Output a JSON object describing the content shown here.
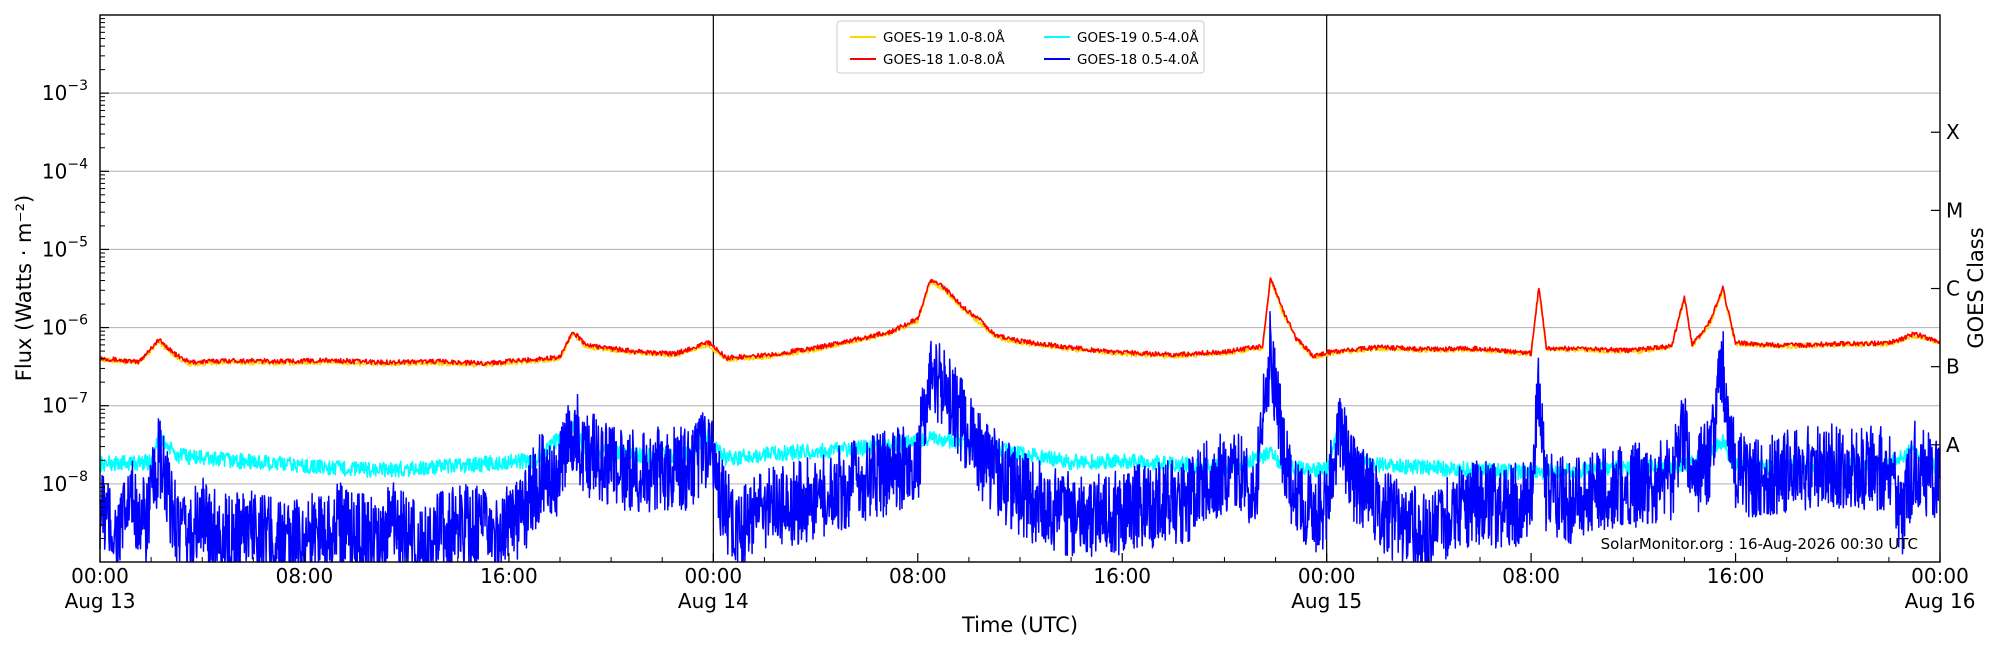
{
  "chart_data": {
    "type": "line",
    "title": "",
    "xlabel": "Time (UTC)",
    "ylabel": "Flux (Watts · m⁻²)",
    "y2label": "GOES Class",
    "yscale": "log",
    "ylim": [
      1e-09,
      0.01
    ],
    "xlim_hours": [
      0,
      72
    ],
    "grid": "horizontal-major",
    "legend_position": "top-center",
    "x_ticks": [
      {
        "hour": 0,
        "time": "00:00",
        "date": "Aug 13"
      },
      {
        "hour": 8,
        "time": "08:00",
        "date": ""
      },
      {
        "hour": 16,
        "time": "16:00",
        "date": ""
      },
      {
        "hour": 24,
        "time": "00:00",
        "date": "Aug 14"
      },
      {
        "hour": 32,
        "time": "08:00",
        "date": ""
      },
      {
        "hour": 40,
        "time": "16:00",
        "date": ""
      },
      {
        "hour": 48,
        "time": "00:00",
        "date": "Aug 15"
      },
      {
        "hour": 56,
        "time": "08:00",
        "date": ""
      },
      {
        "hour": 64,
        "time": "16:00",
        "date": ""
      },
      {
        "hour": 72,
        "time": "00:00",
        "date": "Aug 16"
      }
    ],
    "y_ticks": [
      {
        "value": 1e-08,
        "base": "10",
        "exp": "−8"
      },
      {
        "value": 1e-07,
        "base": "10",
        "exp": "−7"
      },
      {
        "value": 1e-06,
        "base": "10",
        "exp": "−6"
      },
      {
        "value": 1e-05,
        "base": "10",
        "exp": "−5"
      },
      {
        "value": 0.0001,
        "base": "10",
        "exp": "−4"
      },
      {
        "value": 0.001,
        "base": "10",
        "exp": "−3"
      }
    ],
    "goes_classes": [
      {
        "label": "A",
        "value": 3.16e-08
      },
      {
        "label": "B",
        "value": 3.16e-07
      },
      {
        "label": "C",
        "value": 3.16e-06
      },
      {
        "label": "M",
        "value": 3.16e-05
      },
      {
        "label": "X",
        "value": 0.000316
      }
    ],
    "day_boundaries_hours": [
      24,
      48
    ],
    "series": [
      {
        "name": "GOES-19 1.0-8.0Å",
        "color": "#ffd700",
        "points": [
          [
            0,
            3.9e-07
          ],
          [
            1.5,
            3.5e-07
          ],
          [
            2.3,
            6.5e-07
          ],
          [
            3,
            4.2e-07
          ],
          [
            3.5,
            3.4e-07
          ],
          [
            5,
            3.6e-07
          ],
          [
            7,
            3.5e-07
          ],
          [
            9,
            3.6e-07
          ],
          [
            11,
            3.4e-07
          ],
          [
            13,
            3.5e-07
          ],
          [
            15,
            3.3e-07
          ],
          [
            16.5,
            3.6e-07
          ],
          [
            18,
            4e-07
          ],
          [
            18.5,
            8.5e-07
          ],
          [
            19,
            5.7e-07
          ],
          [
            21,
            4.7e-07
          ],
          [
            22.5,
            4.4e-07
          ],
          [
            23.8,
            6e-07
          ],
          [
            24.5,
            3.9e-07
          ],
          [
            26,
            4.2e-07
          ],
          [
            28,
            5.2e-07
          ],
          [
            30,
            7.2e-07
          ],
          [
            31,
            8.5e-07
          ],
          [
            32,
            1.2e-06
          ],
          [
            32.5,
            3.9e-06
          ],
          [
            33,
            3.1e-06
          ],
          [
            33.8,
            1.7e-06
          ],
          [
            34.5,
            1.1e-06
          ],
          [
            35,
            7.7e-07
          ],
          [
            36,
            6.4e-07
          ],
          [
            38,
            5.3e-07
          ],
          [
            40,
            4.6e-07
          ],
          [
            42,
            4.3e-07
          ],
          [
            44,
            4.7e-07
          ],
          [
            45.5,
            5.5e-07
          ],
          [
            45.8,
            4.3e-06
          ],
          [
            46.3,
            1.5e-06
          ],
          [
            46.8,
            7e-07
          ],
          [
            47.5,
            4.1e-07
          ],
          [
            48,
            4.6e-07
          ],
          [
            50,
            5.4e-07
          ],
          [
            52,
            5.1e-07
          ],
          [
            54,
            5.2e-07
          ],
          [
            56,
            4.5e-07
          ],
          [
            56.3,
            3.1e-06
          ],
          [
            56.6,
            5.2e-07
          ],
          [
            58,
            5.2e-07
          ],
          [
            60,
            4.9e-07
          ],
          [
            61.5,
            5.6e-07
          ],
          [
            62,
            2.4e-06
          ],
          [
            62.3,
            5.8e-07
          ],
          [
            63,
            1.1e-06
          ],
          [
            63.5,
            3e-06
          ],
          [
            64,
            6.2e-07
          ],
          [
            66,
            5.7e-07
          ],
          [
            68,
            6e-07
          ],
          [
            70,
            6.1e-07
          ],
          [
            71,
            7.8e-07
          ],
          [
            72,
            6.4e-07
          ]
        ]
      },
      {
        "name": "GOES-18 1.0-8.0Å",
        "color": "#ff0000",
        "points": [
          [
            0,
            4.1e-07
          ],
          [
            1.5,
            3.6e-07
          ],
          [
            2.3,
            7e-07
          ],
          [
            3,
            4.4e-07
          ],
          [
            3.5,
            3.6e-07
          ],
          [
            5,
            3.8e-07
          ],
          [
            7,
            3.7e-07
          ],
          [
            9,
            3.8e-07
          ],
          [
            11,
            3.6e-07
          ],
          [
            13,
            3.7e-07
          ],
          [
            15,
            3.5e-07
          ],
          [
            16.5,
            3.8e-07
          ],
          [
            18,
            4.2e-07
          ],
          [
            18.5,
            9e-07
          ],
          [
            19,
            6e-07
          ],
          [
            21,
            4.9e-07
          ],
          [
            22.5,
            4.6e-07
          ],
          [
            23.8,
            6.5e-07
          ],
          [
            24.5,
            4.1e-07
          ],
          [
            26,
            4.4e-07
          ],
          [
            28,
            5.5e-07
          ],
          [
            30,
            7.5e-07
          ],
          [
            31,
            9e-07
          ],
          [
            32,
            1.3e-06
          ],
          [
            32.5,
            4.1e-06
          ],
          [
            33,
            3.3e-06
          ],
          [
            33.8,
            1.8e-06
          ],
          [
            34.5,
            1.2e-06
          ],
          [
            35,
            8e-07
          ],
          [
            36,
            6.7e-07
          ],
          [
            38,
            5.5e-07
          ],
          [
            40,
            4.8e-07
          ],
          [
            42,
            4.5e-07
          ],
          [
            44,
            4.9e-07
          ],
          [
            45.5,
            5.8e-07
          ],
          [
            45.8,
            4.4e-06
          ],
          [
            46.3,
            1.6e-06
          ],
          [
            46.8,
            7.3e-07
          ],
          [
            47.5,
            4.3e-07
          ],
          [
            48,
            4.8e-07
          ],
          [
            50,
            5.6e-07
          ],
          [
            52,
            5.3e-07
          ],
          [
            54,
            5.4e-07
          ],
          [
            56,
            4.7e-07
          ],
          [
            56.3,
            3.3e-06
          ],
          [
            56.6,
            5.4e-07
          ],
          [
            58,
            5.4e-07
          ],
          [
            60,
            5.1e-07
          ],
          [
            61.5,
            5.8e-07
          ],
          [
            62,
            2.5e-06
          ],
          [
            62.3,
            6e-07
          ],
          [
            63,
            1.2e-06
          ],
          [
            63.5,
            3.2e-06
          ],
          [
            64,
            6.4e-07
          ],
          [
            66,
            5.9e-07
          ],
          [
            68,
            6.2e-07
          ],
          [
            70,
            6.3e-07
          ],
          [
            71,
            8.3e-07
          ],
          [
            72,
            6.6e-07
          ]
        ]
      },
      {
        "name": "GOES-19 0.5-4.0Å",
        "color": "#00ffff",
        "points": [
          [
            0,
            1.8e-08
          ],
          [
            2,
            1.9e-08
          ],
          [
            2.3,
            4e-08
          ],
          [
            3,
            2.3e-08
          ],
          [
            5,
            2e-08
          ],
          [
            7,
            1.8e-08
          ],
          [
            9,
            1.6e-08
          ],
          [
            11,
            1.5e-08
          ],
          [
            13,
            1.6e-08
          ],
          [
            15,
            1.8e-08
          ],
          [
            17,
            2e-08
          ],
          [
            18.5,
            5.4e-08
          ],
          [
            19,
            2.8e-08
          ],
          [
            21,
            2.3e-08
          ],
          [
            23,
            2.4e-08
          ],
          [
            23.8,
            4.1e-08
          ],
          [
            24.5,
            2.1e-08
          ],
          [
            26,
            2.4e-08
          ],
          [
            28,
            2.6e-08
          ],
          [
            30,
            2.9e-08
          ],
          [
            31,
            3.1e-08
          ],
          [
            32.5,
            3.9e-08
          ],
          [
            34,
            3.3e-08
          ],
          [
            35,
            2.8e-08
          ],
          [
            36,
            2.4e-08
          ],
          [
            38,
            1.9e-08
          ],
          [
            40,
            2e-08
          ],
          [
            42,
            1.8e-08
          ],
          [
            44,
            1.6e-08
          ],
          [
            45.8,
            2.4e-08
          ],
          [
            46.5,
            1.6e-08
          ],
          [
            48,
            1.5e-08
          ],
          [
            48.5,
            5.5e-08
          ],
          [
            49,
            1.8e-08
          ],
          [
            52,
            1.6e-08
          ],
          [
            54,
            1.5e-08
          ],
          [
            56,
            1.4e-08
          ],
          [
            58,
            1.5e-08
          ],
          [
            60,
            1.6e-08
          ],
          [
            62,
            1.7e-08
          ],
          [
            63.5,
            3.4e-08
          ],
          [
            64,
            1.7e-08
          ],
          [
            66,
            1.6e-08
          ],
          [
            68,
            1.7e-08
          ],
          [
            70,
            1.8e-08
          ],
          [
            71,
            2.8e-08
          ],
          [
            72,
            1.5e-08
          ]
        ]
      },
      {
        "name": "GOES-18 0.5-4.0Å",
        "color": "#0000ff",
        "points": [
          [
            0,
            5e-09
          ],
          [
            0.7,
            2e-09
          ],
          [
            1.2,
            6e-09
          ],
          [
            1.8,
            3e-09
          ],
          [
            2.3,
            2.1e-08
          ],
          [
            2.7,
            6e-09
          ],
          [
            3.3,
            2e-09
          ],
          [
            4,
            3.5e-09
          ],
          [
            5,
            2e-09
          ],
          [
            6,
            3e-09
          ],
          [
            7.3,
            1.5e-09
          ],
          [
            8.5,
            2.5e-09
          ],
          [
            9.5,
            3e-09
          ],
          [
            10.5,
            2e-09
          ],
          [
            11.5,
            3e-09
          ],
          [
            12.5,
            1.5e-09
          ],
          [
            13.5,
            2.5e-09
          ],
          [
            14.5,
            3e-09
          ],
          [
            15.5,
            2e-09
          ],
          [
            16.5,
            4e-09
          ],
          [
            17.2,
            1.2e-08
          ],
          [
            18,
            1.3e-08
          ],
          [
            18.5,
            5.4e-08
          ],
          [
            19,
            2.4e-08
          ],
          [
            20,
            1.8e-08
          ],
          [
            21,
            1.5e-08
          ],
          [
            22,
            1.5e-08
          ],
          [
            23,
            1.6e-08
          ],
          [
            23.5,
            2.5e-08
          ],
          [
            23.8,
            3.2e-08
          ],
          [
            24.3,
            6e-09
          ],
          [
            25,
            2.5e-09
          ],
          [
            26,
            5e-09
          ],
          [
            27,
            5.5e-09
          ],
          [
            28,
            6.5e-09
          ],
          [
            29,
            9e-09
          ],
          [
            30,
            1.2e-08
          ],
          [
            31,
            1.4e-08
          ],
          [
            32,
            2e-08
          ],
          [
            32.5,
            3.1e-07
          ],
          [
            33,
            1.6e-07
          ],
          [
            33.8,
            6e-08
          ],
          [
            34.5,
            2.2e-08
          ],
          [
            35.5,
            1e-08
          ],
          [
            36.5,
            6e-09
          ],
          [
            37.5,
            4.5e-09
          ],
          [
            38.5,
            3.5e-09
          ],
          [
            39.5,
            4e-09
          ],
          [
            40.5,
            5e-09
          ],
          [
            41.5,
            5.5e-09
          ],
          [
            42.5,
            6e-09
          ],
          [
            43.5,
            1.2e-08
          ],
          [
            44.5,
            1.6e-08
          ],
          [
            45.2,
            8e-09
          ],
          [
            45.8,
            5.4e-07
          ],
          [
            46.3,
            3e-08
          ],
          [
            46.8,
            6e-09
          ],
          [
            47.5,
            4e-09
          ],
          [
            48,
            5e-09
          ],
          [
            48.5,
            4.5e-08
          ],
          [
            49,
            1.2e-08
          ],
          [
            50,
            5e-09
          ],
          [
            51,
            3e-09
          ],
          [
            52,
            2.5e-09
          ],
          [
            53,
            4.5e-09
          ],
          [
            54,
            6e-09
          ],
          [
            55,
            5e-09
          ],
          [
            56,
            6e-09
          ],
          [
            56.3,
            1.9e-07
          ],
          [
            56.6,
            7e-09
          ],
          [
            57.5,
            6e-09
          ],
          [
            58.5,
            8e-09
          ],
          [
            59.5,
            9e-09
          ],
          [
            60.5,
            1e-08
          ],
          [
            61.5,
            1.2e-08
          ],
          [
            62,
            4.6e-08
          ],
          [
            62.3,
            1.2e-08
          ],
          [
            63,
            2e-08
          ],
          [
            63.5,
            3.3e-07
          ],
          [
            64,
            1.4e-08
          ],
          [
            65,
            1.2e-08
          ],
          [
            66,
            1.4e-08
          ],
          [
            67,
            1.6e-08
          ],
          [
            68,
            1.7e-08
          ],
          [
            69,
            1.6e-08
          ],
          [
            70,
            1.5e-08
          ],
          [
            70.5,
            4e-09
          ],
          [
            71,
            2e-08
          ],
          [
            71.5,
            1.3e-08
          ],
          [
            72,
            1.2e-08
          ]
        ]
      }
    ]
  },
  "footer": {
    "credit": "SolarMonitor.org : 16-Aug-2026 00:30 UTC"
  }
}
